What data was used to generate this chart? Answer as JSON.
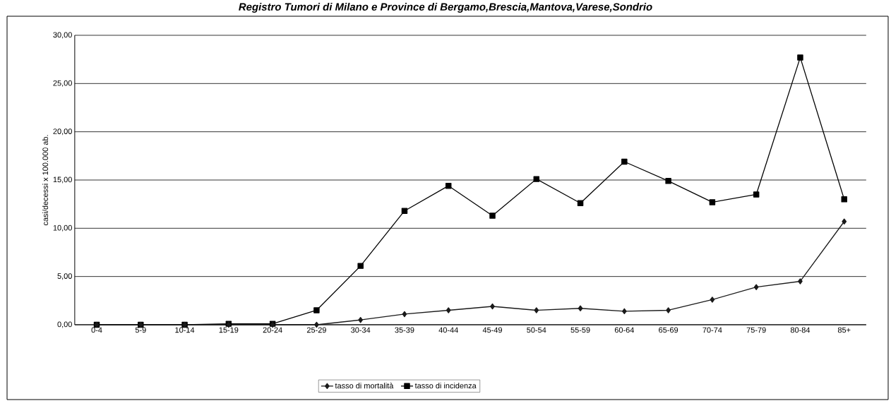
{
  "chart_data": {
    "type": "line",
    "title": "Registro Tumori di Milano e Province di Bergamo,Brescia,Mantova,Varese,Sondrio",
    "ylabel": "casi/decessi x 100.000 ab.",
    "categories": [
      "0-4",
      "5-9",
      "10-14",
      "15-19",
      "20-24",
      "25-29",
      "30-34",
      "35-39",
      "40-44",
      "45-49",
      "50-54",
      "55-59",
      "60-64",
      "65-69",
      "70-74",
      "75-79",
      "80-84",
      "85+"
    ],
    "series": [
      {
        "name": "tasso di mortalità",
        "color": "#1a1a1a",
        "marker": "diamond",
        "values": [
          0,
          0,
          0,
          0,
          0,
          0,
          0.5,
          1.1,
          1.5,
          1.9,
          1.5,
          1.7,
          1.4,
          1.5,
          2.6,
          3.9,
          4.5,
          10.7
        ]
      },
      {
        "name": "tasso di incidenza",
        "color": "#000000",
        "marker": "square",
        "values": [
          0,
          0,
          0,
          0.1,
          0.1,
          1.5,
          6.1,
          11.8,
          14.4,
          11.3,
          15.1,
          12.6,
          16.9,
          14.9,
          12.7,
          13.5,
          27.7,
          13.0
        ]
      }
    ],
    "ylim": [
      0,
      30
    ],
    "yticks": [
      {
        "value": 0,
        "label": "0,00"
      },
      {
        "value": 5,
        "label": "5,00"
      },
      {
        "value": 10,
        "label": "10,00"
      },
      {
        "value": 15,
        "label": "15,00"
      },
      {
        "value": 20,
        "label": "20,00"
      },
      {
        "value": 25,
        "label": "25,00"
      },
      {
        "value": 30,
        "label": "30,00"
      }
    ],
    "grid": "y",
    "legend": "bottom",
    "line_style": "solid"
  }
}
